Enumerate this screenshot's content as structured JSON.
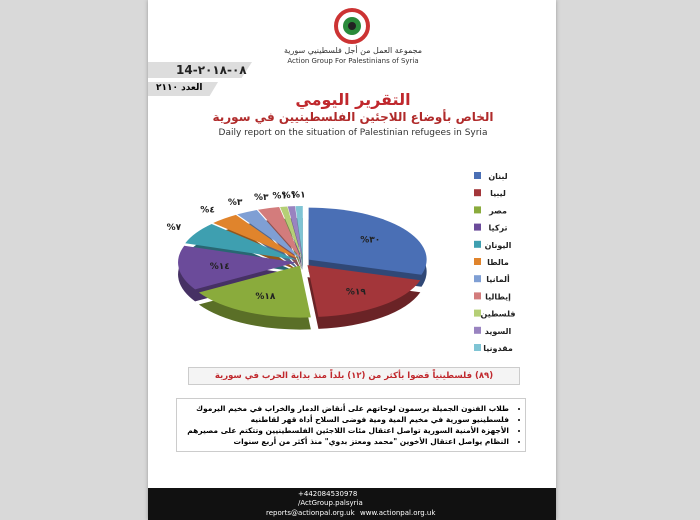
{
  "header": {
    "org_ar": "مجموعة العمل من أجل فلسطينيي سورية",
    "org_en": "Action Group For Palestinians of Syria",
    "date": "14-٠٨-٢٠١٨",
    "issue": "العدد ٢١١٠",
    "title": "التقرير اليومي",
    "subtitle": "الخاص بأوضاع اللاجئين الفلسطينيين في سورية",
    "subtitle_en": "Daily report on the situation of Palestinian refugees in Syria"
  },
  "chart_data": {
    "type": "pie",
    "categories": [
      "لبنان",
      "ليبيا",
      "مصر",
      "تركيا",
      "اليونان",
      "مالطا",
      "ألمانيا",
      "إيطاليا",
      "فلسطين",
      "السويد",
      "مقدونيا"
    ],
    "values": [
      30,
      19,
      18,
      14,
      7,
      4,
      3,
      3,
      1,
      1,
      1
    ],
    "value_labels": [
      "%٣٠",
      "%١٩",
      "%١٨",
      "%١٤",
      "%٧",
      "%٤",
      "%٣",
      "%٣",
      "%١",
      "%١",
      "%١"
    ],
    "colors": [
      "#4a6fb5",
      "#a3363a",
      "#8aab3c",
      "#6b4b9a",
      "#3e9fb0",
      "#e0842c",
      "#7f9fd4",
      "#d37c7c",
      "#b5cf76",
      "#9983c0",
      "#7fc4d4"
    ]
  },
  "note": "(٨٩) فلسطينياً قضوا بأكثر من (١٢) بلداً منذ بداية الحرب في سورية",
  "bullets": [
    "طلاب الفنون الجميلة يرسمون لوحاتهم على أنقاض الدمار والخراب في مخيم اليرموك",
    "فلسطينيو سورية في مخيم المية ومية فوضى السلاح أداة قهر لقاطنيه",
    "الأجهزة الأمنية السورية تواصل اعتقال مئات اللاجئين الفلسطينيين وتتكتم على مصيرهم",
    "النظام يواصل اعتقال الأخوين \"محمد ومعتز بدوي\" منذ أكثر من أربع سنوات"
  ],
  "footer": {
    "phone": "+442084530978",
    "facebook": "/ActGroup.palsyria",
    "email": "reports@actionpal.org.uk",
    "web": "www.actionpal.org.uk"
  }
}
